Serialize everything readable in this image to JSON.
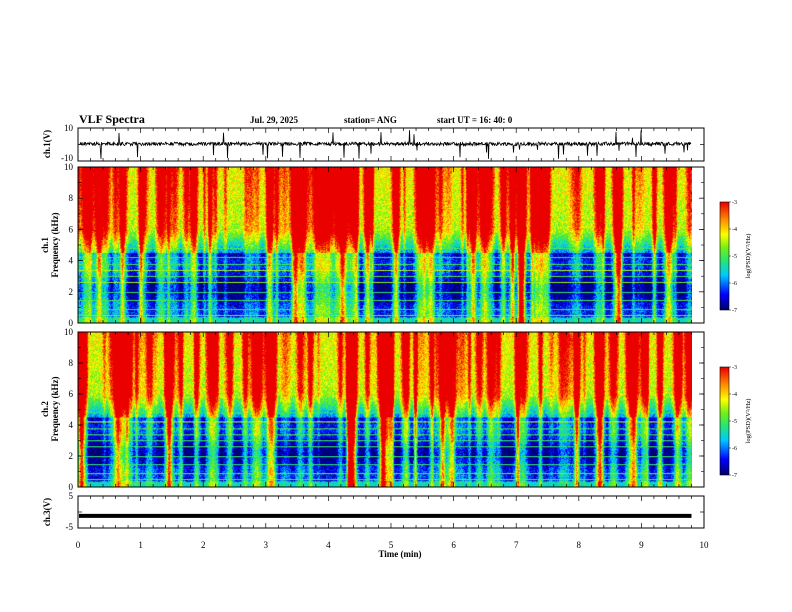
{
  "header": {
    "title": "VLF Spectra",
    "date": "Jul. 29, 2025",
    "station": "station= ANG",
    "start": "start UT =  16: 40: 0"
  },
  "colors": {
    "spec_low": "#00007a",
    "spec_mid": "#00c8ff",
    "spec_high": "#ffff00",
    "spec_top": "#ff0000",
    "trace": "#000000"
  },
  "chart_data": [
    {
      "type": "line",
      "name": "ch1-waveform",
      "ylabel": "ch.1(V)",
      "ylim": [
        -10,
        10
      ],
      "yticks": [
        "10",
        "-10"
      ],
      "x": [
        0,
        9.8
      ],
      "y": [
        0,
        0
      ],
      "note_fill": "noisy trace near 0 V with negative spikes"
    },
    {
      "type": "heatmap",
      "name": "ch1-spectrogram",
      "ylabel": "Frequency (kHz)",
      "ylabel_prefix": "ch.1",
      "ylim": [
        0,
        10
      ],
      "xlim": [
        0,
        10
      ],
      "yticks": [
        "0",
        "2",
        "4",
        "6",
        "8",
        "10"
      ],
      "data_xmax": 9.8,
      "colorbar": {
        "label": "log(PSD)(V²/Hz)",
        "range": [
          -7,
          -3
        ],
        "ticks": [
          "-3",
          "-4",
          "-5",
          "-6",
          "-7"
        ]
      }
    },
    {
      "type": "heatmap",
      "name": "ch2-spectrogram",
      "ylabel": "Frequency (kHz)",
      "ylabel_prefix": "ch.2",
      "ylim": [
        0,
        10
      ],
      "xlim": [
        0,
        10
      ],
      "yticks": [
        "0",
        "2",
        "4",
        "6",
        "8",
        "10"
      ],
      "data_xmax": 9.8,
      "colorbar": {
        "label": "log(PSD)(V²/Hz)",
        "range": [
          -7,
          -3
        ],
        "ticks": [
          "-3",
          "-4",
          "-5",
          "-6",
          "-7"
        ]
      }
    },
    {
      "type": "line",
      "name": "ch3-waveform",
      "ylabel": "ch.3(V)",
      "ylim": [
        -5,
        5
      ],
      "yticks": [
        "5",
        "-5"
      ],
      "x": [
        0,
        9.8
      ],
      "y": [
        -1.2,
        -1.2
      ]
    }
  ],
  "xaxis": {
    "label": "Time (min)",
    "ticks": [
      "0",
      "1",
      "2",
      "3",
      "4",
      "5",
      "6",
      "7",
      "8",
      "9",
      "10"
    ]
  }
}
